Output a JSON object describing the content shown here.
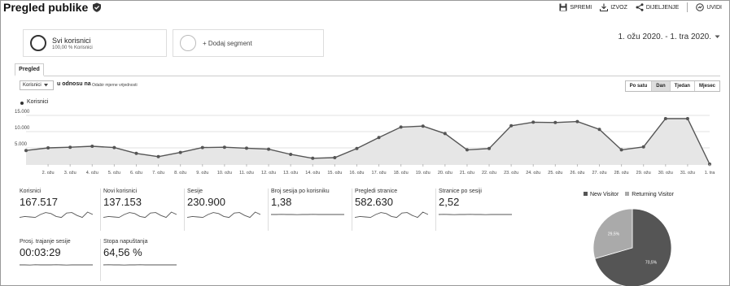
{
  "header": {
    "title": "Pregled publike",
    "actions": [
      "SPREMI",
      "IZVOZ",
      "DIJELJENJE",
      "UVIDI"
    ]
  },
  "segments": {
    "primary": {
      "title": "Svi korisnici",
      "subtitle": "100,00 % Korisnici"
    },
    "add_label": "+ Dodaj segment"
  },
  "date_range": "1. ožu 2020. - 1. tra 2020.",
  "tab": "Pregled",
  "controls": {
    "metric": "Korisnici",
    "vs_label": "u odnosu na",
    "compare_label": "Odabir mjerne vrijednosti",
    "granularity": [
      "Po satu",
      "Dan",
      "Tjedan",
      "Mjesec"
    ],
    "active_granularity": "Dan"
  },
  "chart_data": {
    "type": "area",
    "series": [
      {
        "name": "Korisnici",
        "values": [
          4200,
          5000,
          5200,
          5500,
          5100,
          3300,
          2300,
          3600,
          5100,
          5200,
          4900,
          4600,
          3000,
          1800,
          2000,
          4800,
          8200,
          11400,
          11700,
          9400,
          4400,
          4800,
          11800,
          12900,
          12800,
          13100,
          10700,
          4400,
          5300,
          14000,
          14000,
          0
        ]
      }
    ],
    "x": [
      "1. ožu",
      "2. ožu",
      "3. ožu",
      "4. ožu",
      "5. ožu",
      "6. ožu",
      "7. ožu",
      "8. ožu",
      "9. ožu",
      "10. ožu",
      "11. ožu",
      "12. ožu",
      "13. ožu",
      "14. ožu",
      "15. ožu",
      "16. ožu",
      "17. ožu",
      "18. ožu",
      "19. ožu",
      "20. ožu",
      "21. ožu",
      "22. ožu",
      "23. ožu",
      "24. ožu",
      "25. ožu",
      "26. ožu",
      "27. ožu",
      "28. ožu",
      "29. ožu",
      "30. ožu",
      "31. ožu",
      "1. tra"
    ],
    "x_tick_labels": [
      "2. ožu",
      "3. ožu",
      "4. ožu",
      "5. ožu",
      "6. ožu",
      "7. ožu",
      "8. ožu",
      "9. ožu",
      "10. ožu",
      "11. ožu",
      "12. ožu",
      "13. ožu",
      "14. ožu",
      "15. ožu",
      "16. ožu",
      "17. ožu",
      "18. ožu",
      "19. ožu",
      "20. ožu",
      "21. ožu",
      "22. ožu",
      "23. ožu",
      "24. ožu",
      "25. ožu",
      "26. ožu",
      "27. ožu",
      "28. ožu",
      "29. ožu",
      "30. ožu",
      "31. ožu",
      "1. tra"
    ],
    "y_tick_labels": [
      "15.000",
      "10.000",
      "5.000"
    ],
    "yticks": [
      15000,
      10000,
      5000
    ],
    "ylim": [
      0,
      15000
    ],
    "grid": true,
    "color": "#555555",
    "fill": "#e6e6e6"
  },
  "metrics": [
    {
      "label": "Korisnici",
      "value": "167.517",
      "trend": [
        0.2,
        0.3,
        0.25,
        0.2,
        0.5,
        0.7,
        0.6,
        0.3,
        0.2,
        0.65,
        0.7,
        0.4,
        0.2,
        0.75,
        0.5
      ]
    },
    {
      "label": "Novi korisnici",
      "value": "137.153",
      "trend": [
        0.2,
        0.3,
        0.25,
        0.2,
        0.5,
        0.7,
        0.6,
        0.3,
        0.2,
        0.65,
        0.7,
        0.4,
        0.2,
        0.75,
        0.5
      ]
    },
    {
      "label": "Sesije",
      "value": "230.900",
      "trend": [
        0.2,
        0.3,
        0.25,
        0.2,
        0.5,
        0.7,
        0.6,
        0.3,
        0.2,
        0.65,
        0.7,
        0.4,
        0.2,
        0.75,
        0.5
      ]
    },
    {
      "label": "Broj sesija po korisniku",
      "value": "1,38",
      "trend": [
        0.5,
        0.5,
        0.52,
        0.5,
        0.5,
        0.48,
        0.5,
        0.5,
        0.52,
        0.5,
        0.5,
        0.5,
        0.5,
        0.5,
        0.5
      ]
    },
    {
      "label": "Pregledi stranice",
      "value": "582.630",
      "trend": [
        0.2,
        0.3,
        0.25,
        0.2,
        0.5,
        0.7,
        0.6,
        0.3,
        0.2,
        0.65,
        0.7,
        0.4,
        0.2,
        0.75,
        0.5
      ]
    },
    {
      "label": "Stranice po sesiji",
      "value": "2,52",
      "trend": [
        0.5,
        0.52,
        0.5,
        0.48,
        0.5,
        0.5,
        0.52,
        0.5,
        0.5,
        0.48,
        0.5,
        0.5,
        0.5,
        0.5,
        0.5
      ]
    },
    {
      "label": "Prosj. trajanje sesije",
      "value": "00:03:29",
      "trend": [
        0.5,
        0.5,
        0.48,
        0.52,
        0.5,
        0.5,
        0.5,
        0.52,
        0.5,
        0.48,
        0.5,
        0.5,
        0.5,
        0.5,
        0.5
      ]
    },
    {
      "label": "Stopa napuštanja",
      "value": "64,56 %",
      "trend": [
        0.5,
        0.52,
        0.5,
        0.5,
        0.48,
        0.5,
        0.5,
        0.52,
        0.5,
        0.5,
        0.5,
        0.5,
        0.5,
        0.5,
        0.5
      ]
    }
  ],
  "pie": {
    "legend": [
      {
        "label": "New Visitor",
        "color": "#555555"
      },
      {
        "label": "Returning Visitor",
        "color": "#aaaaaa"
      }
    ],
    "slices": [
      {
        "label": "New Visitor",
        "value": 70.5,
        "text": "70,5%",
        "color": "#555555"
      },
      {
        "label": "Returning Visitor",
        "value": 29.5,
        "text": "29,5%",
        "color": "#aaaaaa"
      }
    ]
  }
}
